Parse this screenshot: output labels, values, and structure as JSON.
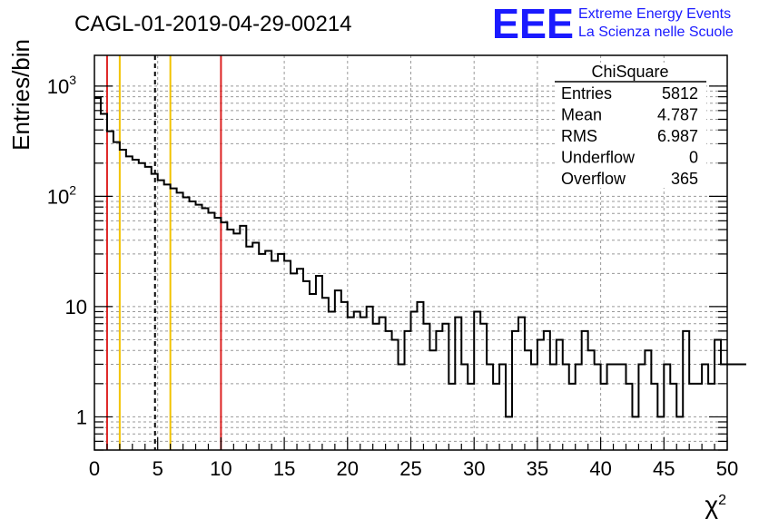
{
  "chart_data": {
    "type": "histogram",
    "title": "CAGL-01-2019-04-29-00214",
    "xlabel": "χ²",
    "ylabel": "Entries/bin",
    "xlim": [
      0,
      50
    ],
    "ylim": [
      0.5,
      1900
    ],
    "yscale": "log",
    "grid": true,
    "bin_width": 0.5,
    "x_ticks": [
      "0",
      "5",
      "10",
      "15",
      "20",
      "25",
      "30",
      "35",
      "40",
      "45",
      "50"
    ],
    "y_ticks": [
      {
        "label": "1",
        "value": 1
      },
      {
        "label": "10",
        "value": 10
      },
      {
        "label": "10",
        "sup": "2",
        "value": 100
      },
      {
        "label": "10",
        "sup": "3",
        "value": 1000
      }
    ],
    "values": [
      780,
      560,
      390,
      310,
      265,
      230,
      215,
      200,
      185,
      160,
      140,
      128,
      118,
      108,
      98,
      90,
      84,
      78,
      71,
      64,
      58,
      50,
      46,
      54,
      35,
      38,
      30,
      32,
      26,
      30,
      26,
      20,
      22,
      17,
      13,
      19,
      12,
      9,
      14,
      11,
      8,
      9,
      8,
      10,
      7,
      8,
      6,
      5,
      3,
      6,
      9,
      11,
      7,
      4,
      6,
      7,
      2,
      8,
      3,
      2,
      9,
      7,
      3,
      2,
      3,
      1,
      6,
      8,
      4,
      3,
      5,
      6,
      3,
      5,
      3,
      2,
      3,
      6,
      4,
      3,
      2,
      3,
      3,
      3,
      2,
      1,
      3,
      4,
      2,
      1,
      3,
      2,
      1,
      6,
      2,
      2,
      3,
      2,
      5,
      3,
      3,
      3,
      3
    ],
    "vertical_lines": [
      {
        "x": 1,
        "color": "#dd2222",
        "style": "solid"
      },
      {
        "x": 2,
        "color": "#f2c300",
        "style": "solid"
      },
      {
        "x": 4.787,
        "color": "#000000",
        "style": "dashed"
      },
      {
        "x": 6,
        "color": "#f2c300",
        "style": "solid"
      },
      {
        "x": 10,
        "color": "#dd2222",
        "style": "solid"
      }
    ],
    "stats_box": {
      "title": "ChiSquare",
      "rows": [
        {
          "label": "Entries",
          "value": "5812"
        },
        {
          "label": "Mean",
          "value": "4.787"
        },
        {
          "label": "RMS",
          "value": "6.987"
        },
        {
          "label": "Underflow",
          "value": "0"
        },
        {
          "label": "Overflow",
          "value": "365"
        }
      ]
    }
  },
  "logo": {
    "mark": "EEE",
    "line1": "Extreme Energy Events",
    "line2": "La Scienza nelle Scuole",
    "color": "#1a1aff"
  }
}
